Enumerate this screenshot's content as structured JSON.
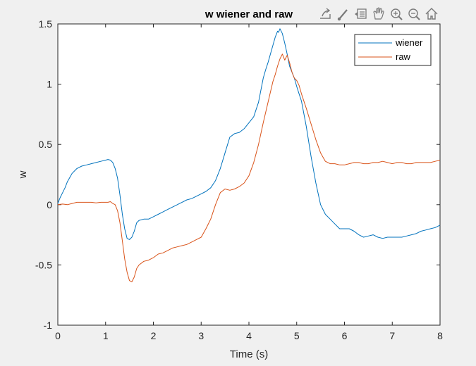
{
  "chart_data": {
    "type": "line",
    "title": "w wiener and raw",
    "xlabel": "Time (s)",
    "ylabel": "w",
    "xlim": [
      0,
      8
    ],
    "ylim": [
      -1,
      1.5
    ],
    "xticks": [
      0,
      1,
      2,
      3,
      4,
      5,
      6,
      7,
      8
    ],
    "xtick_labels": [
      "0",
      "1",
      "2",
      "3",
      "4",
      "5",
      "6",
      "7",
      "8"
    ],
    "yticks": [
      -1,
      -0.5,
      0,
      0.5,
      1,
      1.5
    ],
    "ytick_labels": [
      "-1",
      "-0.5",
      "0",
      "0.5",
      "1",
      "1.5"
    ],
    "grid": false,
    "legend_position": "top-right",
    "series": [
      {
        "name": "wiener",
        "color": "#0072BD",
        "x": [
          0,
          0.05,
          0.1,
          0.15,
          0.2,
          0.3,
          0.4,
          0.5,
          0.6,
          0.7,
          0.8,
          0.9,
          1.0,
          1.05,
          1.1,
          1.15,
          1.2,
          1.25,
          1.3,
          1.35,
          1.4,
          1.45,
          1.5,
          1.55,
          1.6,
          1.65,
          1.7,
          1.8,
          1.9,
          2.0,
          2.1,
          2.2,
          2.3,
          2.4,
          2.5,
          2.6,
          2.7,
          2.8,
          2.9,
          3.0,
          3.1,
          3.2,
          3.3,
          3.4,
          3.5,
          3.6,
          3.7,
          3.8,
          3.9,
          4.0,
          4.1,
          4.2,
          4.3,
          4.35,
          4.4,
          4.45,
          4.5,
          4.55,
          4.6,
          4.62,
          4.65,
          4.7,
          4.75,
          4.8,
          4.85,
          4.9,
          4.95,
          5.0,
          5.05,
          5.1,
          5.2,
          5.3,
          5.4,
          5.5,
          5.6,
          5.7,
          5.8,
          5.9,
          6.0,
          6.1,
          6.2,
          6.3,
          6.4,
          6.5,
          6.6,
          6.7,
          6.8,
          6.9,
          7.0,
          7.1,
          7.2,
          7.3,
          7.4,
          7.5,
          7.6,
          7.7,
          7.8,
          7.9,
          8.0
        ],
        "values": [
          0.01,
          0.06,
          0.1,
          0.14,
          0.19,
          0.26,
          0.3,
          0.32,
          0.33,
          0.34,
          0.35,
          0.36,
          0.37,
          0.375,
          0.37,
          0.35,
          0.3,
          0.22,
          0.08,
          -0.08,
          -0.2,
          -0.28,
          -0.29,
          -0.27,
          -0.22,
          -0.15,
          -0.13,
          -0.12,
          -0.12,
          -0.1,
          -0.08,
          -0.06,
          -0.04,
          -0.02,
          0.0,
          0.02,
          0.04,
          0.05,
          0.07,
          0.09,
          0.11,
          0.14,
          0.2,
          0.3,
          0.43,
          0.56,
          0.59,
          0.6,
          0.63,
          0.68,
          0.73,
          0.85,
          1.05,
          1.12,
          1.18,
          1.25,
          1.32,
          1.39,
          1.44,
          1.43,
          1.46,
          1.42,
          1.34,
          1.25,
          1.15,
          1.1,
          1.05,
          0.98,
          0.92,
          0.86,
          0.65,
          0.4,
          0.18,
          0.0,
          -0.08,
          -0.12,
          -0.16,
          -0.2,
          -0.2,
          -0.2,
          -0.22,
          -0.25,
          -0.27,
          -0.26,
          -0.25,
          -0.27,
          -0.28,
          -0.27,
          -0.27,
          -0.27,
          -0.27,
          -0.26,
          -0.25,
          -0.24,
          -0.22,
          -0.21,
          -0.2,
          -0.19,
          -0.17
        ]
      },
      {
        "name": "raw",
        "color": "#D95319",
        "x": [
          0,
          0.1,
          0.2,
          0.3,
          0.4,
          0.5,
          0.6,
          0.7,
          0.8,
          0.9,
          1.0,
          1.05,
          1.1,
          1.15,
          1.2,
          1.25,
          1.3,
          1.35,
          1.4,
          1.45,
          1.5,
          1.55,
          1.6,
          1.65,
          1.7,
          1.8,
          1.9,
          2.0,
          2.1,
          2.2,
          2.3,
          2.4,
          2.5,
          2.6,
          2.7,
          2.8,
          2.9,
          3.0,
          3.1,
          3.2,
          3.3,
          3.4,
          3.5,
          3.6,
          3.7,
          3.8,
          3.9,
          4.0,
          4.1,
          4.2,
          4.3,
          4.4,
          4.5,
          4.55,
          4.6,
          4.65,
          4.7,
          4.75,
          4.8,
          4.85,
          4.9,
          4.95,
          5.0,
          5.05,
          5.1,
          5.2,
          5.3,
          5.4,
          5.5,
          5.6,
          5.7,
          5.8,
          5.9,
          6.0,
          6.1,
          6.2,
          6.3,
          6.4,
          6.5,
          6.6,
          6.7,
          6.8,
          6.9,
          7.0,
          7.1,
          7.2,
          7.3,
          7.4,
          7.5,
          7.6,
          7.7,
          7.8,
          7.9,
          8.0
        ],
        "values": [
          0.0,
          0.005,
          0.0,
          0.01,
          0.02,
          0.02,
          0.02,
          0.02,
          0.015,
          0.02,
          0.02,
          0.02,
          0.025,
          0.01,
          0.0,
          -0.05,
          -0.15,
          -0.3,
          -0.45,
          -0.56,
          -0.63,
          -0.64,
          -0.6,
          -0.53,
          -0.5,
          -0.47,
          -0.46,
          -0.44,
          -0.41,
          -0.4,
          -0.38,
          -0.36,
          -0.35,
          -0.34,
          -0.33,
          -0.31,
          -0.29,
          -0.27,
          -0.2,
          -0.12,
          0.0,
          0.1,
          0.13,
          0.12,
          0.13,
          0.15,
          0.18,
          0.24,
          0.35,
          0.5,
          0.68,
          0.85,
          1.02,
          1.08,
          1.15,
          1.21,
          1.25,
          1.2,
          1.24,
          1.18,
          1.1,
          1.05,
          1.03,
          0.99,
          0.92,
          0.8,
          0.67,
          0.54,
          0.43,
          0.36,
          0.34,
          0.34,
          0.33,
          0.33,
          0.34,
          0.35,
          0.35,
          0.34,
          0.34,
          0.35,
          0.35,
          0.36,
          0.35,
          0.34,
          0.35,
          0.35,
          0.34,
          0.34,
          0.35,
          0.35,
          0.35,
          0.35,
          0.36,
          0.37
        ]
      }
    ]
  },
  "toolbar": {
    "icons": [
      "export-icon",
      "brush-icon",
      "data-tips-icon",
      "pan-icon",
      "zoom-in-icon",
      "zoom-out-icon",
      "home-icon"
    ]
  },
  "colors": {
    "figure_background": "#f0f0f0",
    "axes_background": "#ffffff",
    "axis_color": "#262626"
  }
}
